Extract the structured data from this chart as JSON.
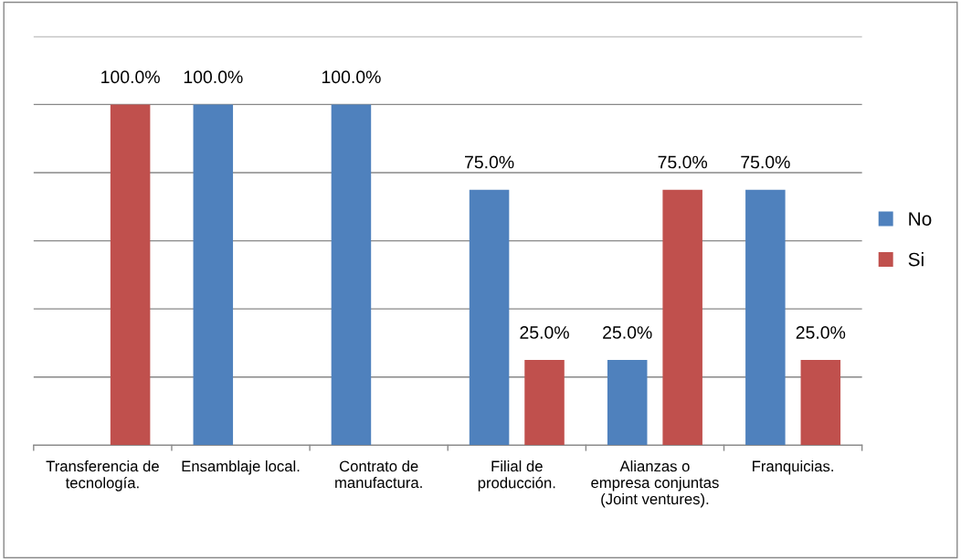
{
  "chart_data": {
    "type": "bar",
    "categories": [
      "Transferencia de tecnología.",
      "Ensamblaje local.",
      "Contrato de manufactura.",
      "Filial de producción.",
      "Alianzas o empresa conjuntas (Joint ventures).",
      "Franquicias."
    ],
    "series": [
      {
        "name": "No",
        "color": "#4f81bd",
        "values": [
          null,
          100,
          100,
          75,
          25,
          75
        ],
        "value_labels": [
          null,
          "100.0%",
          "100.0%",
          "75.0%",
          "25.0%",
          "75.0%"
        ]
      },
      {
        "name": "Si",
        "color": "#c0504d",
        "values": [
          100,
          null,
          null,
          25,
          75,
          25
        ],
        "value_labels": [
          "100.0%",
          null,
          null,
          "25.0%",
          "75.0%",
          "25.0%"
        ]
      }
    ],
    "ylim": [
      0,
      120
    ],
    "yticks": [
      {
        "value": 0,
        "label": null
      },
      {
        "value": 20,
        "label": null
      },
      {
        "value": 40,
        "label": null
      },
      {
        "value": 60,
        "label": null
      },
      {
        "value": 80,
        "label": null
      },
      {
        "value": 100,
        "label": null
      },
      {
        "value": 120,
        "label": null
      }
    ],
    "grid": "y",
    "legend": "right",
    "tick_labels": "x"
  }
}
